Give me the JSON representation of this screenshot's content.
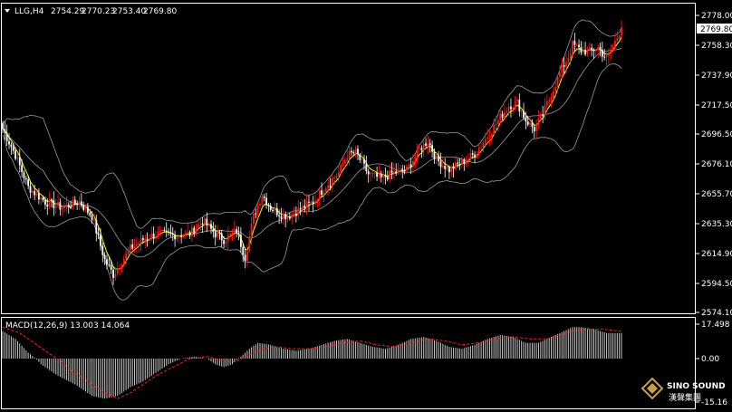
{
  "chart_data": [
    {
      "type": "candlestick",
      "header": {
        "symbol_timeframe": "LLG,H4",
        "open": "2754.29",
        "high": "2770.23",
        "low": "2753.40",
        "close": "2769.80"
      },
      "current_price_label": "2769.80",
      "y_tick_labels": [
        "2778.00",
        "2758.30",
        "2737.90",
        "2717.50",
        "2696.50",
        "2676.10",
        "2655.70",
        "2635.30",
        "2614.90",
        "2594.50",
        "2574.10"
      ],
      "ylim": [
        2574.1,
        2778.0
      ],
      "close_path": [
        [
          0,
          2700
        ],
        [
          6,
          2682
        ],
        [
          12,
          2660
        ],
        [
          20,
          2650
        ],
        [
          28,
          2646
        ],
        [
          36,
          2650
        ],
        [
          42,
          2640
        ],
        [
          48,
          2610
        ],
        [
          52,
          2600
        ],
        [
          60,
          2618
        ],
        [
          68,
          2626
        ],
        [
          74,
          2628
        ],
        [
          80,
          2627
        ],
        [
          88,
          2628
        ],
        [
          94,
          2637
        ],
        [
          100,
          2628
        ],
        [
          104,
          2624
        ],
        [
          110,
          2630
        ],
        [
          114,
          2612
        ],
        [
          118,
          2640
        ],
        [
          122,
          2655
        ],
        [
          126,
          2646
        ],
        [
          130,
          2642
        ],
        [
          134,
          2640
        ],
        [
          140,
          2645
        ],
        [
          146,
          2650
        ],
        [
          152,
          2661
        ],
        [
          158,
          2670
        ],
        [
          162,
          2682
        ],
        [
          166,
          2684
        ],
        [
          172,
          2669
        ],
        [
          178,
          2666
        ],
        [
          184,
          2670
        ],
        [
          190,
          2672
        ],
        [
          196,
          2686
        ],
        [
          200,
          2692
        ],
        [
          204,
          2679
        ],
        [
          210,
          2672
        ],
        [
          216,
          2677
        ],
        [
          222,
          2683
        ],
        [
          228,
          2695
        ],
        [
          234,
          2708
        ],
        [
          238,
          2716
        ],
        [
          242,
          2718
        ],
        [
          246,
          2706
        ],
        [
          250,
          2700
        ],
        [
          254,
          2710
        ],
        [
          258,
          2724
        ],
        [
          262,
          2738
        ],
        [
          266,
          2750
        ],
        [
          268,
          2758
        ],
        [
          272,
          2754
        ],
        [
          276,
          2753
        ],
        [
          280,
          2756
        ],
        [
          284,
          2748
        ],
        [
          288,
          2760
        ],
        [
          291,
          2769.8
        ]
      ],
      "indicators": [
        "Moving average",
        "Bollinger Bands"
      ]
    },
    {
      "type": "macd",
      "label": "MACD(12,26,9) 13.003 14.064",
      "y_tick_labels": [
        "17.498",
        "0.00",
        "-15.16"
      ],
      "ylim": [
        -15.16,
        17.498
      ],
      "histogram_path": [
        [
          0,
          14
        ],
        [
          6,
          10
        ],
        [
          12,
          3
        ],
        [
          18,
          -2
        ],
        [
          26,
          -6
        ],
        [
          34,
          -9
        ],
        [
          42,
          -13
        ],
        [
          48,
          -14
        ],
        [
          54,
          -13
        ],
        [
          60,
          -10
        ],
        [
          66,
          -8
        ],
        [
          72,
          -5
        ],
        [
          78,
          -2
        ],
        [
          84,
          0
        ],
        [
          90,
          1
        ],
        [
          96,
          0
        ],
        [
          100,
          -2
        ],
        [
          104,
          -3
        ],
        [
          108,
          -2
        ],
        [
          112,
          1
        ],
        [
          116,
          5
        ],
        [
          120,
          8
        ],
        [
          126,
          7
        ],
        [
          132,
          5
        ],
        [
          138,
          4
        ],
        [
          144,
          5
        ],
        [
          150,
          7
        ],
        [
          156,
          9
        ],
        [
          162,
          10
        ],
        [
          168,
          8
        ],
        [
          174,
          6
        ],
        [
          180,
          5
        ],
        [
          186,
          7
        ],
        [
          192,
          10
        ],
        [
          198,
          11
        ],
        [
          204,
          9
        ],
        [
          210,
          6
        ],
        [
          216,
          5
        ],
        [
          222,
          7
        ],
        [
          228,
          10
        ],
        [
          234,
          12
        ],
        [
          240,
          11
        ],
        [
          246,
          8
        ],
        [
          252,
          8
        ],
        [
          258,
          11
        ],
        [
          264,
          14
        ],
        [
          268,
          16
        ],
        [
          272,
          16
        ],
        [
          278,
          15
        ],
        [
          284,
          13
        ],
        [
          290,
          13
        ]
      ],
      "signal_path": [
        [
          0,
          16
        ],
        [
          8,
          13
        ],
        [
          16,
          7
        ],
        [
          24,
          1
        ],
        [
          32,
          -4
        ],
        [
          40,
          -8
        ],
        [
          48,
          -12
        ],
        [
          54,
          -14
        ],
        [
          60,
          -12
        ],
        [
          66,
          -9
        ],
        [
          72,
          -6
        ],
        [
          80,
          -3
        ],
        [
          88,
          0
        ],
        [
          96,
          1
        ],
        [
          104,
          -1
        ],
        [
          110,
          -1
        ],
        [
          116,
          2
        ],
        [
          122,
          5
        ],
        [
          128,
          6
        ],
        [
          136,
          5
        ],
        [
          144,
          5
        ],
        [
          152,
          6
        ],
        [
          160,
          8
        ],
        [
          168,
          9
        ],
        [
          176,
          7
        ],
        [
          184,
          6
        ],
        [
          192,
          8
        ],
        [
          200,
          10
        ],
        [
          208,
          9
        ],
        [
          216,
          7
        ],
        [
          224,
          8
        ],
        [
          232,
          10
        ],
        [
          240,
          11
        ],
        [
          248,
          10
        ],
        [
          256,
          10
        ],
        [
          262,
          12
        ],
        [
          268,
          14
        ],
        [
          274,
          15
        ],
        [
          282,
          15
        ],
        [
          290,
          14
        ]
      ]
    }
  ],
  "watermark": {
    "brand": "SINO SOUND",
    "chinese": "漢聲集團"
  },
  "colors": {
    "background": "#000000",
    "axis": "#ffffff",
    "bull_candle": "#ff1a1a",
    "bear_candle": "#ffffff",
    "moving_average": "#ffff00",
    "bollinger": "#9a9a9a",
    "macd_signal": "#ff2020",
    "macd_histogram": "#c8c8c8"
  }
}
